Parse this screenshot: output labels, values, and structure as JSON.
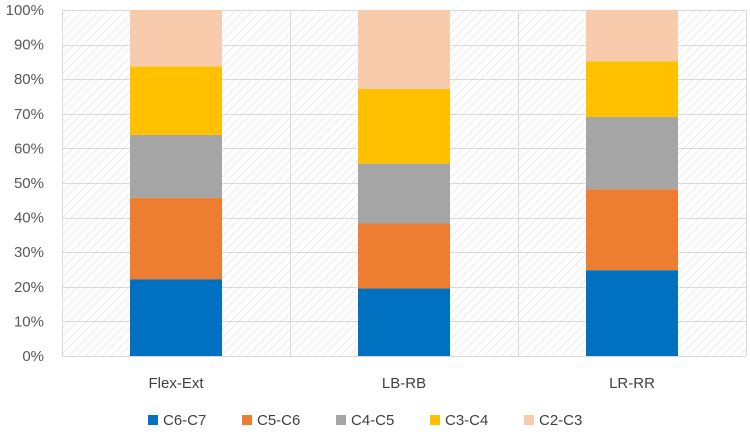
{
  "chart_data": {
    "type": "bar",
    "stacked": true,
    "percent": true,
    "categories": [
      "Flex-Ext",
      "LB-RB",
      "LR-RR"
    ],
    "series": [
      {
        "name": "C6-C7",
        "color": "#0070C0",
        "values": [
          22.2,
          19.5,
          24.8
        ]
      },
      {
        "name": "C5-C6",
        "color": "#ED7D31",
        "values": [
          23.5,
          18.8,
          23.4
        ]
      },
      {
        "name": "C4-C5",
        "color": "#A5A5A5",
        "values": [
          18.2,
          17.3,
          20.9
        ]
      },
      {
        "name": "C3-C4",
        "color": "#FFC000",
        "values": [
          19.8,
          21.6,
          16.1
        ]
      },
      {
        "name": "C2-C3",
        "color": "#F8CBAD",
        "values": [
          16.3,
          22.8,
          14.8
        ]
      }
    ],
    "y_ticks": [
      "0%",
      "10%",
      "20%",
      "30%",
      "40%",
      "50%",
      "60%",
      "70%",
      "80%",
      "90%",
      "100%"
    ],
    "ylim": [
      0,
      100
    ],
    "grid": true,
    "legend_position": "bottom",
    "title": "",
    "xlabel": "",
    "ylabel": ""
  }
}
